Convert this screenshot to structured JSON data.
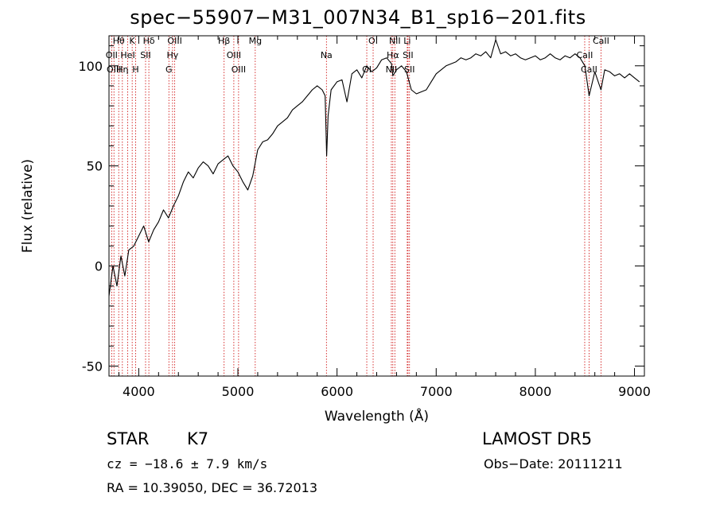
{
  "chart_data": {
    "type": "line",
    "title": "spec−55907−M31_007N34_B1_sp16−201.fits",
    "xlabel": "Wavelength (Å)",
    "ylabel": "Flux (relative)",
    "xlim": [
      3700,
      9100
    ],
    "ylim": [
      -55,
      115
    ],
    "x_ticks": [
      4000,
      5000,
      6000,
      7000,
      8000,
      9000
    ],
    "y_ticks": [
      -50,
      0,
      50,
      100
    ],
    "grid": false,
    "series": [
      {
        "x": [
          3700,
          3740,
          3780,
          3820,
          3860,
          3900,
          3950,
          4000,
          4050,
          4100,
          4150,
          4200,
          4250,
          4300,
          4350,
          4400,
          4450,
          4500,
          4550,
          4600,
          4650,
          4700,
          4750,
          4800,
          4850,
          4900,
          4950,
          5000,
          5050,
          5100,
          5150,
          5200,
          5250,
          5300,
          5350,
          5400,
          5450,
          5500,
          5550,
          5600,
          5650,
          5700,
          5750,
          5800,
          5850,
          5880,
          5895,
          5910,
          5940,
          6000,
          6050,
          6100,
          6150,
          6200,
          6250,
          6300,
          6350,
          6400,
          6450,
          6500,
          6550,
          6563,
          6600,
          6650,
          6700,
          6750,
          6800,
          6850,
          6900,
          6950,
          7000,
          7050,
          7100,
          7150,
          7200,
          7250,
          7300,
          7350,
          7400,
          7450,
          7500,
          7550,
          7600,
          7650,
          7700,
          7750,
          7800,
          7850,
          7900,
          7950,
          8000,
          8050,
          8100,
          8150,
          8200,
          8250,
          8300,
          8350,
          8400,
          8450,
          8500,
          8542,
          8600,
          8662,
          8700,
          8750,
          8800,
          8850,
          8900,
          8950,
          9000,
          9050
        ],
        "y": [
          -15,
          0,
          -10,
          5,
          -5,
          8,
          10,
          15,
          20,
          12,
          18,
          22,
          28,
          24,
          30,
          35,
          42,
          47,
          44,
          49,
          52,
          50,
          46,
          51,
          53,
          55,
          50,
          47,
          42,
          38,
          45,
          58,
          62,
          63,
          66,
          70,
          72,
          74,
          78,
          80,
          82,
          85,
          88,
          90,
          88,
          85,
          55,
          75,
          88,
          92,
          93,
          82,
          96,
          98,
          94,
          100,
          97,
          99,
          103,
          104,
          101,
          95,
          98,
          100,
          97,
          88,
          86,
          87,
          88,
          92,
          96,
          98,
          100,
          101,
          102,
          104,
          103,
          104,
          106,
          105,
          107,
          104,
          113,
          106,
          107,
          105,
          106,
          104,
          103,
          104,
          105,
          103,
          104,
          106,
          104,
          103,
          105,
          104,
          106,
          104,
          100,
          85,
          97,
          88,
          98,
          97,
          95,
          96,
          94,
          96,
          94,
          92
        ]
      }
    ],
    "line_markers": [
      {
        "label": "Hθ",
        "x": 3798
      },
      {
        "label": "OII",
        "x": 3727
      },
      {
        "label": "OIII",
        "x": 3750
      },
      {
        "label": "K",
        "x": 3934
      },
      {
        "label": "HeI",
        "x": 3889
      },
      {
        "label": "Hη",
        "x": 3835
      },
      {
        "label": "Hδ",
        "x": 4102
      },
      {
        "label": "SII",
        "x": 4069
      },
      {
        "label": "H",
        "x": 3969
      },
      {
        "label": "OIII",
        "x": 4363
      },
      {
        "label": "Hγ",
        "x": 4341
      },
      {
        "label": "G",
        "x": 4304
      },
      {
        "label": "Hβ",
        "x": 4861
      },
      {
        "label": "OIII",
        "x": 4959
      },
      {
        "label": "OIII",
        "x": 5007
      },
      {
        "label": "Mg",
        "x": 5175
      },
      {
        "label": "Na",
        "x": 5893
      },
      {
        "label": "OI",
        "x": 6300
      },
      {
        "label": "OI",
        "x": 6364
      },
      {
        "label": "Hα",
        "x": 6563
      },
      {
        "label": "NII",
        "x": 6548
      },
      {
        "label": "NII",
        "x": 6583
      },
      {
        "label": "SII",
        "x": 6716
      },
      {
        "label": "SII",
        "x": 6731
      },
      {
        "label": "Li",
        "x": 6708
      },
      {
        "label": "CaII",
        "x": 8498
      },
      {
        "label": "CaII",
        "x": 8542
      },
      {
        "label": "CaII",
        "x": 8662
      }
    ]
  },
  "info": {
    "class_label": "STAR",
    "subclass_label": "K7",
    "cz_text": "cz = −18.6 ± 7.9 km/s",
    "radec_text": "RA =  10.39050, DEC =  36.72013",
    "survey_label": "LAMOST  DR5",
    "obsdate_text": "Obs−Date: 20111211"
  },
  "colors": {
    "axes": "#000000",
    "spectrum": "#000000",
    "marker_lines": "#cc0000"
  }
}
